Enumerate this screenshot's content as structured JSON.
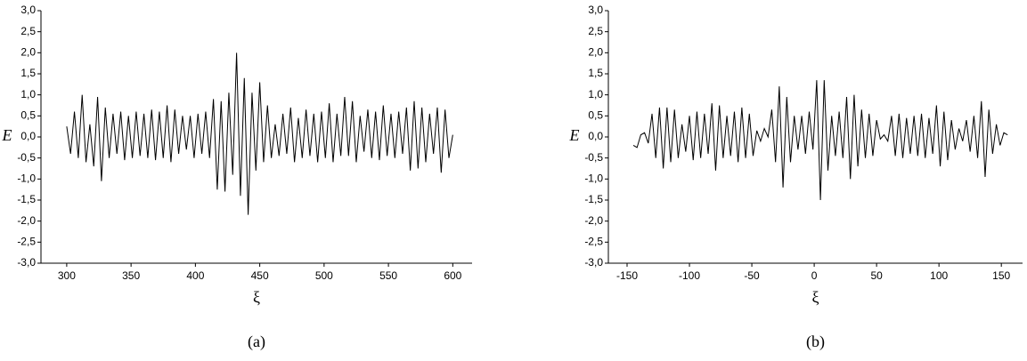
{
  "chart_data": [
    {
      "type": "line",
      "ylabel": "E",
      "xlabel": "ξ",
      "caption": "(a)",
      "color": "#000000",
      "x": [
        300,
        303,
        306,
        309,
        312,
        315,
        318,
        321,
        324,
        327,
        330,
        333,
        336,
        339,
        342,
        345,
        348,
        351,
        354,
        357,
        360,
        363,
        366,
        369,
        372,
        375,
        378,
        381,
        384,
        387,
        390,
        393,
        396,
        399,
        402,
        405,
        408,
        411,
        414,
        417,
        420,
        423,
        426,
        429,
        432,
        435,
        438,
        441,
        444,
        447,
        450,
        453,
        456,
        459,
        462,
        465,
        468,
        471,
        474,
        477,
        480,
        483,
        486,
        489,
        492,
        495,
        498,
        501,
        504,
        507,
        510,
        513,
        516,
        519,
        522,
        525,
        528,
        531,
        534,
        537,
        540,
        543,
        546,
        549,
        552,
        555,
        558,
        561,
        564,
        567,
        570,
        573,
        576,
        579,
        582,
        585,
        588,
        591,
        594,
        597,
        600
      ],
      "values": [
        0.25,
        -0.4,
        0.6,
        -0.5,
        1.0,
        -0.6,
        0.3,
        -0.7,
        0.95,
        -1.05,
        0.7,
        -0.5,
        0.55,
        -0.4,
        0.6,
        -0.55,
        0.5,
        -0.5,
        0.6,
        -0.45,
        0.55,
        -0.5,
        0.65,
        -0.55,
        0.6,
        -0.5,
        0.75,
        -0.6,
        0.65,
        -0.4,
        0.5,
        -0.3,
        0.5,
        -0.5,
        0.55,
        -0.4,
        0.6,
        -0.5,
        0.9,
        -1.25,
        0.85,
        -1.3,
        1.05,
        -0.9,
        2.0,
        -1.4,
        1.4,
        -1.85,
        1.05,
        -0.8,
        1.3,
        -0.6,
        0.75,
        -0.5,
        0.3,
        -0.45,
        0.55,
        -0.4,
        0.7,
        -0.6,
        0.45,
        -0.5,
        0.65,
        -0.45,
        0.55,
        -0.6,
        0.6,
        -0.5,
        0.8,
        -0.6,
        0.55,
        -0.45,
        0.95,
        -0.45,
        0.85,
        -0.6,
        0.5,
        -0.35,
        0.65,
        -0.5,
        0.6,
        -0.55,
        0.75,
        -0.45,
        0.55,
        -0.5,
        0.6,
        -0.4,
        0.7,
        -0.8,
        0.85,
        -0.75,
        0.7,
        -0.6,
        0.55,
        -0.4,
        0.7,
        -0.85,
        0.65,
        -0.5,
        0.05
      ],
      "xlim": [
        280,
        615
      ],
      "xticks": [
        300,
        350,
        400,
        450,
        500,
        550,
        600
      ],
      "ylim": [
        -3,
        3
      ],
      "yticks": [
        {
          "value": 3,
          "label": "3,0"
        },
        {
          "value": 2.5,
          "label": "2,5"
        },
        {
          "value": 2,
          "label": "2,0"
        },
        {
          "value": 1.5,
          "label": "1,5"
        },
        {
          "value": 1,
          "label": "1,0"
        },
        {
          "value": 0.5,
          "label": "0,5"
        },
        {
          "value": 0,
          "label": "0,0"
        },
        {
          "value": -0.5,
          "label": "-0,5"
        },
        {
          "value": -1,
          "label": "-1,0"
        },
        {
          "value": -1.5,
          "label": "-1,5"
        },
        {
          "value": -2,
          "label": "-2,0"
        },
        {
          "value": -2.5,
          "label": "-2,5"
        },
        {
          "value": -3,
          "label": "-3,0"
        }
      ]
    },
    {
      "type": "line",
      "ylabel": "E",
      "xlabel": "ξ",
      "caption": "(b)",
      "color": "#000000",
      "x": [
        -145,
        -142,
        -139,
        -136,
        -133,
        -130,
        -127,
        -124,
        -121,
        -118,
        -115,
        -112,
        -109,
        -106,
        -103,
        -100,
        -97,
        -94,
        -91,
        -88,
        -85,
        -82,
        -79,
        -76,
        -73,
        -70,
        -67,
        -64,
        -61,
        -58,
        -55,
        -52,
        -49,
        -46,
        -43,
        -40,
        -37,
        -34,
        -31,
        -28,
        -25,
        -22,
        -19,
        -16,
        -13,
        -10,
        -7,
        -4,
        -1,
        2,
        5,
        8,
        11,
        14,
        17,
        20,
        23,
        26,
        29,
        32,
        35,
        38,
        41,
        44,
        47,
        50,
        53,
        56,
        59,
        62,
        65,
        68,
        71,
        74,
        77,
        80,
        83,
        86,
        89,
        92,
        95,
        98,
        101,
        104,
        107,
        110,
        113,
        116,
        119,
        122,
        125,
        128,
        131,
        134,
        137,
        140,
        143,
        146,
        149,
        152,
        155
      ],
      "values": [
        -0.2,
        -0.25,
        0.05,
        0.1,
        -0.15,
        0.55,
        -0.5,
        0.7,
        -0.75,
        0.7,
        -0.6,
        0.65,
        -0.5,
        0.3,
        -0.35,
        0.5,
        -0.55,
        0.6,
        -0.5,
        0.55,
        -0.4,
        0.8,
        -0.8,
        0.75,
        -0.5,
        0.5,
        -0.45,
        0.6,
        -0.6,
        0.7,
        -0.5,
        0.55,
        -0.45,
        0.15,
        -0.1,
        0.2,
        0.0,
        0.65,
        -0.6,
        1.2,
        -1.2,
        0.95,
        -0.6,
        0.5,
        -0.3,
        0.5,
        -0.4,
        0.6,
        -0.3,
        1.35,
        -1.5,
        1.35,
        -0.8,
        0.5,
        -0.45,
        0.6,
        -0.5,
        0.95,
        -1.0,
        1.0,
        -0.7,
        0.65,
        -0.5,
        0.55,
        -0.45,
        0.4,
        -0.05,
        0.05,
        -0.1,
        0.5,
        -0.45,
        0.55,
        -0.5,
        0.45,
        -0.4,
        0.5,
        -0.45,
        0.55,
        -0.5,
        0.45,
        -0.4,
        0.75,
        -0.7,
        0.6,
        -0.55,
        0.4,
        -0.3,
        0.2,
        -0.1,
        0.4,
        -0.35,
        0.5,
        -0.5,
        0.85,
        -0.95,
        0.65,
        -0.4,
        0.3,
        -0.2,
        0.1,
        0.05
      ],
      "xlim": [
        -165,
        167
      ],
      "xticks": [
        -150,
        -100,
        -50,
        0,
        50,
        100,
        150
      ],
      "ylim": [
        -3,
        3
      ],
      "yticks": [
        {
          "value": 3,
          "label": "3,0"
        },
        {
          "value": 2.5,
          "label": "2,5"
        },
        {
          "value": 2,
          "label": "2,0"
        },
        {
          "value": 1.5,
          "label": "1,5"
        },
        {
          "value": 1,
          "label": "1,0"
        },
        {
          "value": 0.5,
          "label": "0,5"
        },
        {
          "value": 0,
          "label": "0,0"
        },
        {
          "value": -0.5,
          "label": "-0,5"
        },
        {
          "value": -1,
          "label": "-1,0"
        },
        {
          "value": -1.5,
          "label": "-1,5"
        },
        {
          "value": -2,
          "label": "-2,0"
        },
        {
          "value": -2.5,
          "label": "-2,5"
        },
        {
          "value": -3,
          "label": "-3,0"
        }
      ]
    }
  ]
}
